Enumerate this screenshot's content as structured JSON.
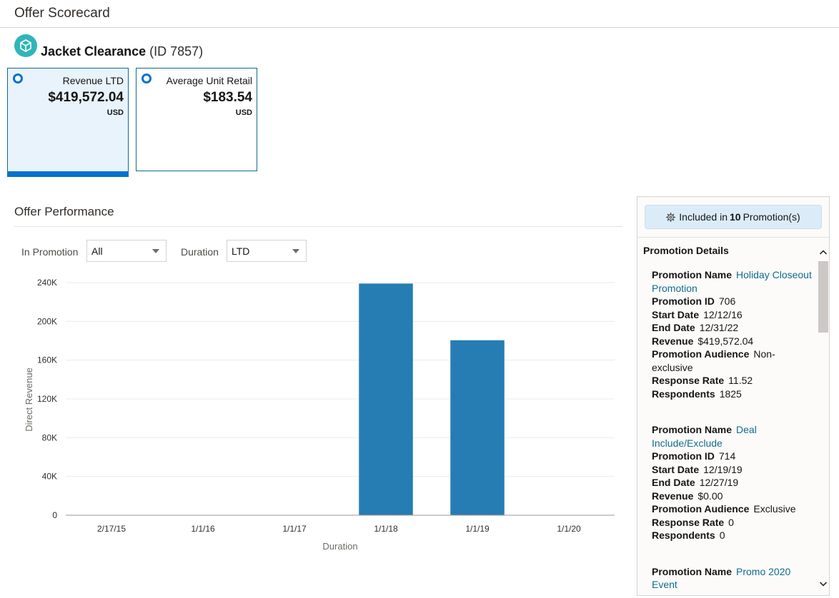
{
  "window": {
    "title": "Offer Scorecard"
  },
  "offer": {
    "name": "Jacket Clearance",
    "id_text": "(ID 7857)",
    "icon": "cube-icon"
  },
  "metrics": [
    {
      "label": "Revenue LTD",
      "value": "$419,572.04",
      "unit": "USD",
      "selected": true
    },
    {
      "label": "Average Unit Retail",
      "value": "$183.54",
      "unit": "USD",
      "selected": false
    }
  ],
  "performance": {
    "title": "Offer Performance",
    "filters": {
      "in_promotion_label": "In Promotion",
      "in_promotion_value": "All",
      "duration_label": "Duration",
      "duration_value": "LTD"
    }
  },
  "chart_data": {
    "type": "bar",
    "categories": [
      "2/17/15",
      "1/1/16",
      "1/1/17",
      "1/1/18",
      "1/1/19",
      "1/1/20"
    ],
    "values": [
      0,
      0,
      0,
      239000,
      180500,
      0
    ],
    "title": "",
    "xlabel": "Duration",
    "ylabel": "Direct Revenue",
    "ylim": [
      0,
      240000
    ],
    "yticks": [
      0,
      40000,
      80000,
      120000,
      160000,
      200000,
      240000
    ],
    "ytick_labels": [
      "0",
      "40K",
      "80K",
      "120K",
      "160K",
      "200K",
      "240K"
    ],
    "color": "#267db3",
    "grid": true
  },
  "side_panel": {
    "included_prefix": "Included in",
    "included_count": "10",
    "included_suffix": "Promotion(s)",
    "details_title": "Promotion Details",
    "labels": {
      "name": "Promotion Name",
      "id": "Promotion ID",
      "start": "Start Date",
      "end": "End Date",
      "revenue": "Revenue",
      "audience": "Promotion Audience",
      "response_rate": "Response Rate",
      "respondents": "Respondents"
    },
    "promotions": [
      {
        "name": "Holiday Closeout Promotion",
        "id": "706",
        "start": "12/12/16",
        "end": "12/31/22",
        "revenue": "$419,572.04",
        "audience": "Non-exclusive",
        "response_rate": "11.52",
        "respondents": "1825"
      },
      {
        "name": "Deal Include/Exclude",
        "id": "714",
        "start": "12/19/19",
        "end": "12/27/19",
        "revenue": "$0.00",
        "audience": "Exclusive",
        "response_rate": "0",
        "respondents": "0"
      },
      {
        "name": "Promo 2020 Event"
      }
    ]
  },
  "colors": {
    "accent": "#0572ce",
    "link": "#0e6c8c",
    "bar": "#267db3",
    "cube": "#30b5b8"
  }
}
